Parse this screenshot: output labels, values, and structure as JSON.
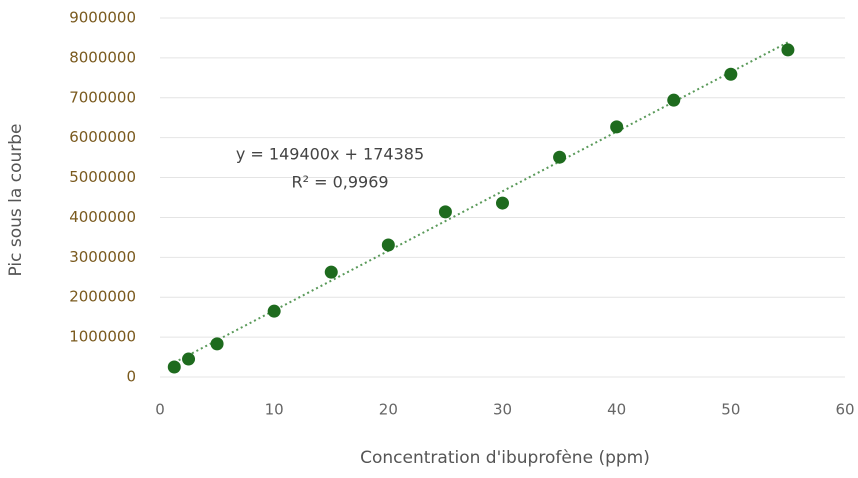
{
  "chart_data": {
    "type": "scatter",
    "xlabel": "Concentration d'ibuprofène (ppm)",
    "ylabel": "Pic sous la courbe",
    "x": [
      1.25,
      2.5,
      5,
      10,
      15,
      20,
      25,
      30,
      35,
      40,
      45,
      50,
      55
    ],
    "series": [
      {
        "color": "#1e6b1e",
        "values": [
          250000,
          450000,
          830000,
          1650000,
          2630000,
          3310000,
          4140000,
          4360000,
          5510000,
          6270000,
          6940000,
          7590000,
          8200000
        ]
      }
    ],
    "trendline": {
      "equation": "y = 149400x + 174385",
      "r2": "R² = 0,9969",
      "slope": 149400,
      "intercept": 174385,
      "color": "#5a9a5a"
    },
    "xlim": [
      0,
      60
    ],
    "xticks": [
      0,
      10,
      20,
      30,
      40,
      50,
      60
    ],
    "ylim": [
      0,
      9000000
    ],
    "yticks": [
      0,
      1000000,
      2000000,
      3000000,
      4000000,
      5000000,
      6000000,
      7000000,
      8000000,
      9000000
    ],
    "grid": true
  }
}
